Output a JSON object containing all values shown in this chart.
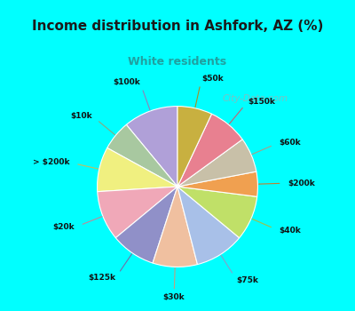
{
  "title": "Income distribution in Ashfork, AZ (%)",
  "subtitle": "White residents",
  "background_top": "#00FFFF",
  "background_chart_color": "#e0f5ee",
  "labels": [
    "$100k",
    "$10k",
    "> $200k",
    "$20k",
    "$125k",
    "$30k",
    "$75k",
    "$40k",
    "$200k",
    "$60k",
    "$150k",
    "$50k"
  ],
  "values": [
    11,
    6,
    9,
    10,
    9,
    9,
    10,
    9,
    5,
    7,
    8,
    7
  ],
  "colors": [
    "#b0a0d8",
    "#a8c8a0",
    "#f0f080",
    "#f0a8b8",
    "#9090c8",
    "#f0c0a0",
    "#a8c0e8",
    "#c0e068",
    "#f0a050",
    "#c8c0a8",
    "#e88090",
    "#c8b040"
  ],
  "line_colors": [
    "#9080b8",
    "#88a880",
    "#c0c060",
    "#c08898",
    "#7070a8",
    "#c0a080",
    "#88a0c8",
    "#a0c048",
    "#c08030",
    "#a8a088",
    "#c86070",
    "#a89020"
  ],
  "watermark": "City-Data.com",
  "title_fontsize": 11,
  "subtitle_fontsize": 9,
  "label_fontsize": 6.5
}
